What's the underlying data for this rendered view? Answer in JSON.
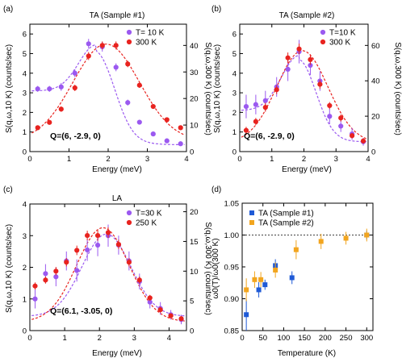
{
  "colors": {
    "purple": "#9b59f0",
    "red": "#e8231f",
    "blue": "#1f5ad6",
    "orange": "#f2a51e"
  },
  "chart_data": [
    {
      "type": "scatter",
      "panel_label": "(a)",
      "title": "TA (Sample #1)",
      "xlabel": "Energy (meV)",
      "ylabel_left": "S(q,ω,10 K) (counts/sec)",
      "ylabel_right": "S(q,ω,300 K) (counts/sec)",
      "xlim": [
        0,
        4
      ],
      "ylim_left": [
        0,
        6.5
      ],
      "ylim_right": [
        0,
        48
      ],
      "xticks": [
        0,
        1,
        2,
        3,
        4
      ],
      "yticks_left": [
        0,
        1,
        2,
        3,
        4,
        5,
        6
      ],
      "yticks_right": [
        0,
        10,
        20,
        30,
        40
      ],
      "annotation": "Q=(6, -2.9, 0)",
      "legend_position": "top-right",
      "series": [
        {
          "name": "T= 10 K",
          "axis": "left",
          "color": "purple",
          "x": [
            0.2,
            0.5,
            0.8,
            1.15,
            1.5,
            1.85,
            2.2,
            2.5,
            2.8,
            3.15,
            3.5,
            3.85
          ],
          "y": [
            3.2,
            3.2,
            3.3,
            4.0,
            5.5,
            5.35,
            4.3,
            2.5,
            1.5,
            0.9,
            0.55,
            0.4
          ],
          "err": [
            0.15,
            0.15,
            0.2,
            0.2,
            0.25,
            0.25,
            0.2,
            0.15,
            0.12,
            0.1,
            0.1,
            0.1
          ]
        },
        {
          "name": "300 K",
          "axis": "right",
          "color": "red",
          "x": [
            0.2,
            0.5,
            0.8,
            1.15,
            1.5,
            1.85,
            2.2,
            2.5,
            2.8,
            3.15,
            3.5,
            3.85
          ],
          "y": [
            9,
            11,
            16,
            24,
            36,
            40,
            40,
            33,
            25,
            17,
            12,
            9
          ],
          "err": [
            0.8,
            0.8,
            1.0,
            1.2,
            1.5,
            1.5,
            1.5,
            1.2,
            1.0,
            0.9,
            0.8,
            0.8
          ]
        }
      ],
      "fits": [
        {
          "axis": "left",
          "color": "purple",
          "type": "gaussian",
          "base": 3.1,
          "amp": 2.35,
          "center": 1.7,
          "sigma": 0.45,
          "tail": 0.35
        },
        {
          "axis": "right",
          "color": "red",
          "type": "gaussian",
          "base": 4,
          "amp": 36.5,
          "center": 1.95,
          "sigma": 0.85
        }
      ]
    },
    {
      "type": "scatter",
      "panel_label": "(b)",
      "title": "TA (Sample #2)",
      "xlabel": "Energy (meV)",
      "ylabel_left": "S(q,ω,10 K) (counts/sec)",
      "ylabel_right": "S(q,ω,300 K) (counts/sec)",
      "xlim": [
        0,
        4
      ],
      "ylim_left": [
        0,
        6.5
      ],
      "ylim_right": [
        0,
        72
      ],
      "xticks": [
        0,
        1,
        2,
        3,
        4
      ],
      "yticks_left": [
        0,
        1,
        2,
        3,
        4,
        5,
        6
      ],
      "yticks_right": [
        0,
        20,
        40,
        60
      ],
      "annotation": "Q=(6, -2.9, 0)",
      "legend_position": "top-right",
      "series": [
        {
          "name": "T=10 K",
          "axis": "left",
          "color": "purple",
          "x": [
            0.2,
            0.5,
            0.8,
            1.15,
            1.5,
            1.85,
            2.2,
            2.5,
            2.8,
            3.15,
            3.5,
            3.85
          ],
          "y": [
            2.3,
            2.4,
            2.6,
            3.3,
            4.2,
            5.1,
            4.4,
            3.6,
            1.8,
            1.3,
            0.9,
            0.5
          ],
          "err": [
            0.6,
            0.5,
            0.5,
            0.5,
            0.6,
            0.6,
            0.5,
            0.5,
            0.4,
            0.3,
            0.3,
            0.2
          ]
        },
        {
          "name": "300 K",
          "axis": "right",
          "color": "red",
          "x": [
            0.2,
            0.5,
            0.8,
            1.15,
            1.5,
            1.85,
            2.2,
            2.5,
            2.8,
            3.15,
            3.5,
            3.85
          ],
          "y": [
            12,
            17,
            25,
            35,
            53,
            58,
            52,
            38,
            26,
            19,
            9,
            6
          ],
          "err": [
            2,
            2,
            2.5,
            2.5,
            3,
            3,
            3,
            2.5,
            2,
            2,
            1.5,
            1.5
          ]
        }
      ],
      "fits": [
        {
          "axis": "left",
          "color": "purple",
          "type": "gaussian",
          "base": 2.1,
          "amp": 2.8,
          "center": 1.85,
          "sigma": 0.55,
          "tail": 0.5
        },
        {
          "axis": "right",
          "color": "red",
          "type": "gaussian",
          "base": 5,
          "amp": 52,
          "center": 1.95,
          "sigma": 0.8
        }
      ]
    },
    {
      "type": "scatter",
      "panel_label": "(c)",
      "title": "LA",
      "xlabel": "Energy (meV)",
      "ylabel_left": "S(q,ω,10 K) (counts/sec)",
      "ylabel_right": "S(q,ω,300 K) (counts/sec)",
      "xlim": [
        0,
        4.5
      ],
      "ylim_left": [
        0,
        4
      ],
      "ylim_right": [
        0,
        21.3
      ],
      "xticks": [
        0,
        1,
        2,
        3,
        4
      ],
      "yticks_left": [
        0,
        1,
        2,
        3,
        4
      ],
      "yticks_right": [
        0,
        5,
        10,
        15,
        20
      ],
      "annotation": "Q=(6.1, -3.05, 0)",
      "legend_position": "top-right",
      "series": [
        {
          "name": "T=30 K",
          "axis": "left",
          "color": "purple",
          "x": [
            0.15,
            0.45,
            0.75,
            1.05,
            1.35,
            1.65,
            1.95,
            2.25,
            2.55,
            2.85,
            3.15,
            3.45,
            3.75,
            4.05,
            4.35
          ],
          "y": [
            1.0,
            1.8,
            1.7,
            2.2,
            1.9,
            2.55,
            2.7,
            3.0,
            2.7,
            2.2,
            1.55,
            0.9,
            0.7,
            0.5,
            0.35
          ],
          "err": [
            0.3,
            0.3,
            0.3,
            0.3,
            0.35,
            0.35,
            0.35,
            0.35,
            0.3,
            0.3,
            0.25,
            0.2,
            0.2,
            0.15,
            0.15
          ]
        },
        {
          "name": "250 K",
          "axis": "right",
          "color": "red",
          "x": [
            0.15,
            0.45,
            0.75,
            1.05,
            1.35,
            1.65,
            1.95,
            2.25,
            2.55,
            2.85,
            3.15,
            3.45,
            3.75,
            4.05,
            4.35
          ],
          "y": [
            7.5,
            8.5,
            10,
            11.5,
            13.5,
            16,
            16,
            16.5,
            14.5,
            11.5,
            8.5,
            5.5,
            3.5,
            2.5,
            2
          ],
          "err": [
            0.6,
            0.6,
            0.7,
            0.7,
            0.8,
            0.8,
            0.9,
            0.9,
            0.8,
            0.7,
            0.6,
            0.5,
            0.5,
            0.4,
            0.4
          ]
        }
      ],
      "fits": [
        {
          "axis": "left",
          "color": "purple",
          "type": "gaussian",
          "base": 0.45,
          "amp": 2.6,
          "center": 2.2,
          "sigma": 0.7
        },
        {
          "axis": "right",
          "color": "red",
          "type": "gaussian",
          "base": 1.5,
          "amp": 15.8,
          "center": 2.1,
          "sigma": 0.75
        }
      ]
    },
    {
      "type": "scatter",
      "panel_label": "(d)",
      "title": "",
      "xlabel": "Temperature (K)",
      "ylabel_left": "ω0(T)/ω0(300 K)",
      "xlim": [
        0,
        315
      ],
      "ylim_left": [
        0.85,
        1.05
      ],
      "xticks": [
        0,
        50,
        100,
        150,
        200,
        250,
        300
      ],
      "yticks_left": [
        0.85,
        0.9,
        0.95,
        1.0,
        1.05
      ],
      "reference_line_y": 1.0,
      "legend_position": "top-left",
      "series": [
        {
          "name": "TA (Sample #1)",
          "color": "blue",
          "x": [
            10,
            40,
            55,
            80,
            120,
            300
          ],
          "y": [
            0.875,
            0.914,
            0.922,
            0.952,
            0.933,
            1.0
          ],
          "err": [
            0.025,
            0.012,
            0.008,
            0.01,
            0.01,
            0.007
          ]
        },
        {
          "name": "TA (Sample #2)",
          "color": "orange",
          "x": [
            10,
            30,
            45,
            80,
            130,
            190,
            250,
            300
          ],
          "y": [
            0.914,
            0.93,
            0.93,
            0.945,
            0.977,
            0.99,
            0.995,
            1.0
          ],
          "err": [
            0.018,
            0.013,
            0.012,
            0.012,
            0.015,
            0.012,
            0.01,
            0.01
          ]
        }
      ]
    }
  ]
}
